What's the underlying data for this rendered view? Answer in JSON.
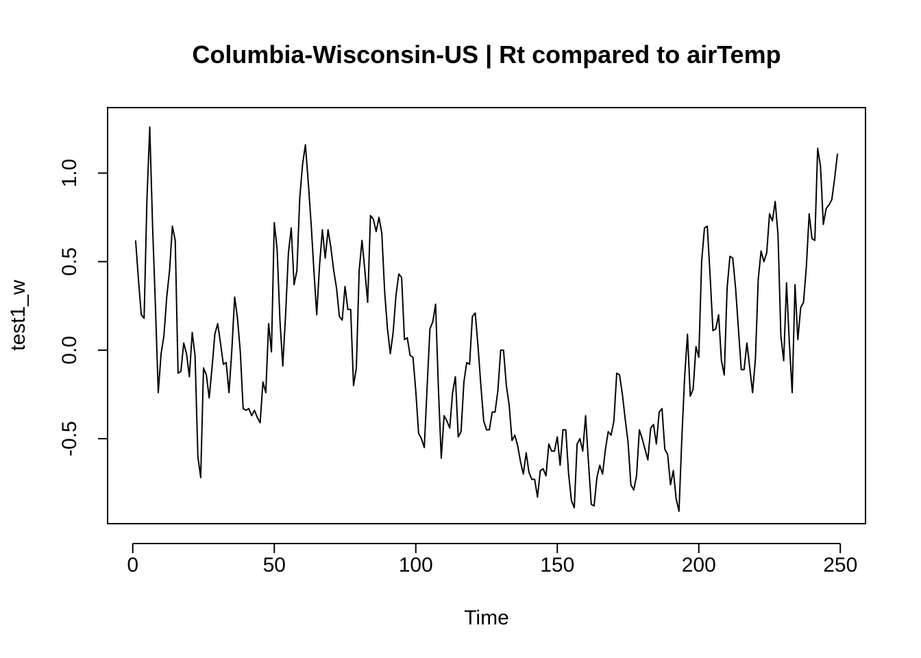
{
  "chart_data": {
    "type": "line",
    "title": "Columbia-Wisconsin-US | Rt compared to airTemp",
    "xlabel": "Time",
    "ylabel": "test1_w",
    "xlim": [
      -8.9,
      258.9
    ],
    "ylim": [
      -0.98,
      1.37
    ],
    "x_ticks": [
      0,
      50,
      100,
      150,
      200,
      250
    ],
    "y_ticks": [
      -0.5,
      0.0,
      0.5,
      1.0
    ],
    "x_tick_labels": [
      "0",
      "50",
      "100",
      "150",
      "200",
      "250"
    ],
    "y_tick_labels": [
      "-0.5",
      "0.0",
      "0.5",
      "1.0"
    ],
    "grid": false,
    "line_color": "#000000",
    "series": [
      {
        "x_start": 1,
        "x_step": 1,
        "values": [
          0.62,
          0.4,
          0.2,
          0.18,
          0.85,
          1.26,
          0.7,
          0.25,
          -0.24,
          -0.02,
          0.08,
          0.3,
          0.45,
          0.7,
          0.62,
          -0.13,
          -0.12,
          0.04,
          -0.02,
          -0.15,
          0.1,
          -0.03,
          -0.6,
          -0.72,
          -0.1,
          -0.14,
          -0.27,
          -0.1,
          0.09,
          0.15,
          0.04,
          -0.08,
          -0.07,
          -0.24,
          0.0,
          0.3,
          0.18,
          -0.01,
          -0.33,
          -0.34,
          -0.33,
          -0.37,
          -0.34,
          -0.38,
          -0.41,
          -0.18,
          -0.24,
          0.15,
          -0.01,
          0.72,
          0.57,
          0.17,
          -0.09,
          0.2,
          0.55,
          0.69,
          0.37,
          0.45,
          0.86,
          1.05,
          1.16,
          0.95,
          0.72,
          0.45,
          0.2,
          0.48,
          0.68,
          0.52,
          0.68,
          0.58,
          0.45,
          0.35,
          0.19,
          0.17,
          0.36,
          0.23,
          0.23,
          -0.2,
          -0.1,
          0.45,
          0.62,
          0.45,
          0.27,
          0.76,
          0.74,
          0.67,
          0.75,
          0.66,
          0.33,
          0.12,
          -0.02,
          0.1,
          0.31,
          0.43,
          0.41,
          0.06,
          0.07,
          -0.03,
          -0.04,
          -0.23,
          -0.47,
          -0.5,
          -0.55,
          -0.21,
          0.12,
          0.16,
          0.26,
          -0.22,
          -0.61,
          -0.37,
          -0.4,
          -0.44,
          -0.24,
          -0.15,
          -0.49,
          -0.46,
          -0.18,
          -0.07,
          -0.08,
          0.19,
          0.21,
          0.02,
          -0.2,
          -0.4,
          -0.45,
          -0.45,
          -0.35,
          -0.35,
          -0.23,
          0.0,
          0.0,
          -0.2,
          -0.31,
          -0.51,
          -0.48,
          -0.54,
          -0.63,
          -0.7,
          -0.58,
          -0.69,
          -0.73,
          -0.73,
          -0.83,
          -0.68,
          -0.67,
          -0.71,
          -0.53,
          -0.57,
          -0.57,
          -0.49,
          -0.65,
          -0.45,
          -0.45,
          -0.7,
          -0.85,
          -0.89,
          -0.53,
          -0.5,
          -0.57,
          -0.37,
          -0.63,
          -0.87,
          -0.88,
          -0.72,
          -0.65,
          -0.7,
          -0.56,
          -0.46,
          -0.48,
          -0.4,
          -0.13,
          -0.14,
          -0.25,
          -0.39,
          -0.52,
          -0.76,
          -0.79,
          -0.71,
          -0.45,
          -0.5,
          -0.56,
          -0.62,
          -0.44,
          -0.42,
          -0.53,
          -0.35,
          -0.33,
          -0.56,
          -0.59,
          -0.76,
          -0.68,
          -0.84,
          -0.91,
          -0.5,
          -0.15,
          0.09,
          -0.26,
          -0.22,
          0.02,
          -0.04,
          0.5,
          0.69,
          0.7,
          0.42,
          0.11,
          0.12,
          0.2,
          -0.06,
          -0.14,
          0.35,
          0.53,
          0.52,
          0.35,
          0.12,
          -0.11,
          -0.11,
          0.04,
          -0.1,
          -0.24,
          -0.05,
          0.4,
          0.56,
          0.5,
          0.55,
          0.77,
          0.73,
          0.84,
          0.65,
          0.08,
          -0.06,
          0.38,
          0.04,
          -0.24,
          0.37,
          0.06,
          0.24,
          0.27,
          0.47,
          0.77,
          0.63,
          0.62,
          1.14,
          1.04,
          0.71,
          0.8,
          0.82,
          0.85,
          0.97,
          1.11
        ]
      }
    ]
  }
}
